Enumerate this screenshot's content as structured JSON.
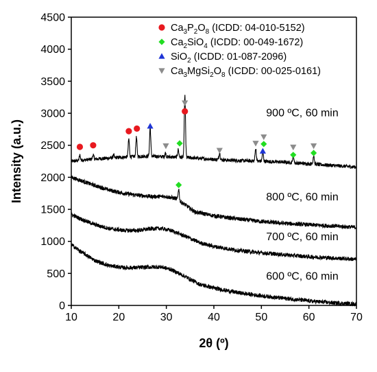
{
  "chart_data": {
    "type": "line",
    "xlabel": "2θ (º)",
    "ylabel": "Intensity (a.u.)",
    "xlim": [
      10,
      70
    ],
    "ylim": [
      0,
      4500
    ],
    "xticks": [
      10,
      20,
      30,
      40,
      50,
      60,
      70
    ],
    "yticks": [
      0,
      500,
      1000,
      1500,
      2000,
      2500,
      3000,
      3500,
      4000,
      4500
    ],
    "grid": false,
    "legend_position": "top-right",
    "legend": [
      {
        "marker": "circle",
        "color": "#e8191f",
        "formula": [
          [
            "Ca",
            false
          ],
          [
            "3",
            true
          ],
          [
            "P",
            false
          ],
          [
            "2",
            true
          ],
          [
            "O",
            false
          ],
          [
            "8",
            true
          ]
        ],
        "ref": " (ICDD: 04-010-5152)"
      },
      {
        "marker": "diamond",
        "color": "#22dd22",
        "formula": [
          [
            "Ca",
            false
          ],
          [
            "2",
            true
          ],
          [
            "SiO",
            false
          ],
          [
            "4",
            true
          ]
        ],
        "ref": " (ICDD: 00-049-1672)"
      },
      {
        "marker": "triangle",
        "color": "#1f35d6",
        "formula": [
          [
            "SiO",
            false
          ],
          [
            "2",
            true
          ]
        ],
        "ref": "          (ICDD: 01-087-2096)"
      },
      {
        "marker": "triangle-down",
        "color": "#8c8c8c",
        "formula": [
          [
            "Ca",
            false
          ],
          [
            "3",
            true
          ],
          [
            "MgSi",
            false
          ],
          [
            "2",
            true
          ],
          [
            "O",
            false
          ],
          [
            "8",
            true
          ]
        ],
        "ref": " (ICDD: 00-025-0161)"
      }
    ],
    "series": [
      {
        "name": "900 ºC, 60 min",
        "label_x": 51,
        "label_y": 2950,
        "baseline": [
          [
            10,
            2250
          ],
          [
            14,
            2280
          ],
          [
            18,
            2300
          ],
          [
            22,
            2320
          ],
          [
            26,
            2330
          ],
          [
            30,
            2320
          ],
          [
            34,
            2310
          ],
          [
            38,
            2290
          ],
          [
            42,
            2270
          ],
          [
            46,
            2260
          ],
          [
            50,
            2250
          ],
          [
            54,
            2240
          ],
          [
            58,
            2220
          ],
          [
            62,
            2200
          ],
          [
            66,
            2180
          ],
          [
            70,
            2160
          ]
        ],
        "peaks": [
          [
            11.8,
            80
          ],
          [
            14.6,
            70
          ],
          [
            18.9,
            40
          ],
          [
            22.1,
            280
          ],
          [
            23.7,
            300
          ],
          [
            26.6,
            450
          ],
          [
            29.8,
            60
          ],
          [
            32.5,
            120
          ],
          [
            33.9,
            980
          ],
          [
            41.2,
            110
          ],
          [
            48.8,
            200
          ],
          [
            50.3,
            150
          ],
          [
            56.7,
            120
          ],
          [
            61.0,
            140
          ]
        ],
        "noise": 28
      },
      {
        "name": "800 ºC, 60 min",
        "label_x": 51,
        "label_y": 1640,
        "baseline": [
          [
            10,
            2000
          ],
          [
            12,
            1950
          ],
          [
            15,
            1870
          ],
          [
            18,
            1800
          ],
          [
            21,
            1750
          ],
          [
            24,
            1720
          ],
          [
            27,
            1700
          ],
          [
            30,
            1700
          ],
          [
            32,
            1670
          ],
          [
            34,
            1570
          ],
          [
            36,
            1460
          ],
          [
            40,
            1400
          ],
          [
            45,
            1350
          ],
          [
            50,
            1310
          ],
          [
            55,
            1280
          ],
          [
            60,
            1260
          ],
          [
            65,
            1240
          ],
          [
            70,
            1220
          ]
        ],
        "peaks": [
          [
            32.6,
            180
          ]
        ],
        "noise": 32
      },
      {
        "name": "700 ºC, 60 min",
        "label_x": 51,
        "label_y": 1020,
        "baseline": [
          [
            10,
            1420
          ],
          [
            12,
            1350
          ],
          [
            15,
            1260
          ],
          [
            18,
            1200
          ],
          [
            21,
            1170
          ],
          [
            24,
            1170
          ],
          [
            27,
            1200
          ],
          [
            29,
            1200
          ],
          [
            31,
            1170
          ],
          [
            34,
            1080
          ],
          [
            37,
            980
          ],
          [
            40,
            920
          ],
          [
            45,
            860
          ],
          [
            50,
            820
          ],
          [
            55,
            790
          ],
          [
            60,
            760
          ],
          [
            65,
            740
          ],
          [
            70,
            720
          ]
        ],
        "peaks": [],
        "noise": 32
      },
      {
        "name": "600 ºC, 60 min",
        "label_x": 51,
        "label_y": 400,
        "baseline": [
          [
            10,
            950
          ],
          [
            12,
            840
          ],
          [
            15,
            700
          ],
          [
            18,
            620
          ],
          [
            21,
            590
          ],
          [
            24,
            590
          ],
          [
            27,
            600
          ],
          [
            29,
            600
          ],
          [
            31,
            560
          ],
          [
            34,
            450
          ],
          [
            37,
            330
          ],
          [
            40,
            270
          ],
          [
            45,
            200
          ],
          [
            50,
            150
          ],
          [
            55,
            110
          ],
          [
            60,
            70
          ],
          [
            65,
            40
          ],
          [
            70,
            20
          ]
        ],
        "peaks": [],
        "noise": 32
      }
    ],
    "markers": [
      {
        "phase": "circle",
        "x": 11.8,
        "y": 2475
      },
      {
        "phase": "circle",
        "x": 14.6,
        "y": 2500
      },
      {
        "phase": "circle",
        "x": 22.1,
        "y": 2720
      },
      {
        "phase": "circle",
        "x": 23.8,
        "y": 2760
      },
      {
        "phase": "circle",
        "x": 33.9,
        "y": 3030
      },
      {
        "phase": "diamond",
        "x": 32.8,
        "y": 2530
      },
      {
        "phase": "diamond",
        "x": 50.5,
        "y": 2520
      },
      {
        "phase": "diamond",
        "x": 56.7,
        "y": 2350
      },
      {
        "phase": "diamond",
        "x": 61.0,
        "y": 2380
      },
      {
        "phase": "diamond",
        "x": 32.6,
        "y": 1880
      },
      {
        "phase": "triangle",
        "x": 26.6,
        "y": 2800
      },
      {
        "phase": "triangle",
        "x": 50.3,
        "y": 2410
      },
      {
        "phase": "triangle-down",
        "x": 29.9,
        "y": 2490
      },
      {
        "phase": "triangle-down",
        "x": 33.9,
        "y": 3160
      },
      {
        "phase": "triangle-down",
        "x": 41.2,
        "y": 2420
      },
      {
        "phase": "triangle-down",
        "x": 48.8,
        "y": 2530
      },
      {
        "phase": "triangle-down",
        "x": 50.5,
        "y": 2630
      },
      {
        "phase": "triangle-down",
        "x": 56.7,
        "y": 2470
      },
      {
        "phase": "triangle-down",
        "x": 61.0,
        "y": 2490
      }
    ]
  }
}
